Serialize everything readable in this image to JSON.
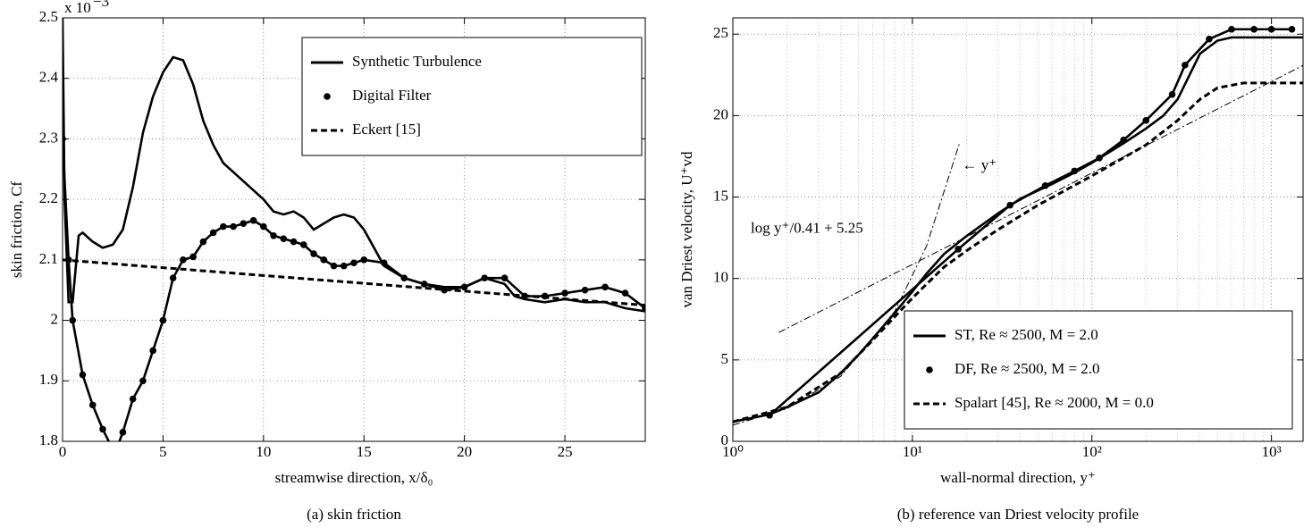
{
  "chart_data": [
    {
      "type": "line",
      "caption": "(a)  skin friction",
      "xlabel": "streamwise direction, x/δ₀",
      "ylabel": "skin friction, Cf",
      "multiplier": "x 10",
      "multiplier_exponent": "−3",
      "xlim": [
        0,
        29
      ],
      "ylim": [
        1.8,
        2.5
      ],
      "xticks": [
        0,
        5,
        10,
        15,
        20,
        25
      ],
      "yticks": [
        1.8,
        1.9,
        2,
        2.1,
        2.2,
        2.3,
        2.4,
        2.5
      ],
      "grid": true,
      "legend": "upper right",
      "series": [
        {
          "name": "Synthetic Turbulence",
          "color": "#000000",
          "linestyle": "solid",
          "marker": false,
          "x": [
            0,
            0.1,
            0.3,
            0.5,
            0.8,
            1,
            1.5,
            2,
            2.5,
            3,
            3.5,
            4,
            4.5,
            5,
            5.5,
            6,
            6.5,
            7,
            7.5,
            8,
            9,
            10,
            10.5,
            11,
            11.5,
            12,
            12.5,
            13,
            13.5,
            14,
            14.5,
            15,
            15.5,
            16,
            17,
            18,
            19,
            20,
            21,
            22,
            22.5,
            23,
            24,
            25,
            26,
            27,
            28,
            29
          ],
          "values": [
            2.5,
            2.2,
            2.03,
            2.03,
            2.14,
            2.145,
            2.13,
            2.12,
            2.125,
            2.15,
            2.22,
            2.31,
            2.37,
            2.41,
            2.435,
            2.43,
            2.39,
            2.33,
            2.29,
            2.26,
            2.23,
            2.2,
            2.18,
            2.175,
            2.18,
            2.17,
            2.15,
            2.16,
            2.17,
            2.175,
            2.17,
            2.15,
            2.12,
            2.09,
            2.07,
            2.06,
            2.055,
            2.055,
            2.07,
            2.06,
            2.04,
            2.035,
            2.03,
            2.035,
            2.03,
            2.03,
            2.02,
            2.015
          ]
        },
        {
          "name": "Digital Filter",
          "color": "#000000",
          "linestyle": "solid",
          "marker": true,
          "x": [
            0,
            0.3,
            0.5,
            1,
            1.5,
            2,
            2.6,
            3,
            3.5,
            4,
            4.5,
            5,
            5.5,
            6,
            6.5,
            7,
            7.5,
            8,
            8.5,
            9,
            9.5,
            10,
            10.5,
            11,
            11.5,
            12,
            12.5,
            13,
            13.5,
            14,
            14.5,
            15,
            16,
            17,
            18,
            19,
            20,
            21,
            22,
            23,
            24,
            25,
            26,
            27,
            28,
            29
          ],
          "values": [
            2.3,
            2.1,
            2.0,
            1.91,
            1.86,
            1.82,
            1.78,
            1.815,
            1.87,
            1.9,
            1.95,
            2.0,
            2.07,
            2.1,
            2.105,
            2.13,
            2.145,
            2.155,
            2.155,
            2.16,
            2.165,
            2.155,
            2.14,
            2.135,
            2.13,
            2.125,
            2.11,
            2.1,
            2.09,
            2.09,
            2.095,
            2.1,
            2.095,
            2.07,
            2.06,
            2.05,
            2.055,
            2.07,
            2.07,
            2.04,
            2.04,
            2.045,
            2.05,
            2.055,
            2.045,
            2.02
          ]
        },
        {
          "name": "Eckert [15]",
          "color": "#000000",
          "linestyle": "dashed",
          "marker": false,
          "x": [
            0,
            29
          ],
          "values": [
            2.1,
            2.025
          ]
        }
      ]
    },
    {
      "type": "line",
      "caption": "(b)  reference van Driest velocity profile",
      "xlabel": "wall-normal direction, y⁺",
      "ylabel": "van Driest velocity, U⁺vd",
      "xscale": "log",
      "xlim": [
        1,
        1500
      ],
      "ylim": [
        0,
        26
      ],
      "xticks": [
        {
          "value": 1,
          "label": "10⁰"
        },
        {
          "value": 10,
          "label": "10¹"
        },
        {
          "value": 100,
          "label": "10²"
        },
        {
          "value": 1000,
          "label": "10³"
        }
      ],
      "xminorticks": [
        2,
        3,
        4,
        5,
        6,
        7,
        8,
        9,
        20,
        30,
        40,
        50,
        60,
        70,
        80,
        90,
        200,
        300,
        400,
        500,
        600,
        700,
        800,
        900
      ],
      "yticks": [
        0,
        5,
        10,
        15,
        20,
        25
      ],
      "grid": true,
      "legend": "lower right",
      "series": [
        {
          "name": "ST, Re ≈ 2500, M = 2.0",
          "color": "#000000",
          "linestyle": "solid",
          "marker": false,
          "x": [
            1,
            1.6,
            2,
            3,
            4,
            5,
            6,
            8,
            10,
            12,
            15,
            20,
            30,
            40,
            60,
            80,
            100,
            150,
            200,
            250,
            300,
            350,
            400,
            500,
            600,
            1000,
            1500
          ],
          "values": [
            1.2,
            1.65,
            2.1,
            3.0,
            4.2,
            5.3,
            6.3,
            7.9,
            9.2,
            10.3,
            11.5,
            12.6,
            14.0,
            14.9,
            15.8,
            16.5,
            17.1,
            18.3,
            19.2,
            20.0,
            21.0,
            22.5,
            23.8,
            24.6,
            24.8,
            24.8,
            24.8
          ]
        },
        {
          "name": "DF, Re ≈ 2500, M = 2.0",
          "color": "#000000",
          "linestyle": "solid",
          "marker": true,
          "x": [
            1.6,
            18,
            35,
            55,
            80,
            110,
            150,
            200,
            280,
            330,
            450,
            600,
            800,
            1000,
            1300
          ],
          "values": [
            1.6,
            11.8,
            14.5,
            15.7,
            16.6,
            17.4,
            18.5,
            19.7,
            21.3,
            23.1,
            24.7,
            25.3,
            25.3,
            25.3,
            25.3
          ]
        },
        {
          "name": "Spalart [45], Re ≈ 2000, M = 0.0",
          "color": "#000000",
          "linestyle": "dashed",
          "marker": false,
          "x": [
            1,
            2,
            4,
            6,
            10,
            15,
            20,
            30,
            50,
            100,
            200,
            300,
            400,
            500,
            700,
            1500
          ],
          "values": [
            1.2,
            2.1,
            4.2,
            6.2,
            8.8,
            10.7,
            11.7,
            13.0,
            14.5,
            16.3,
            18.2,
            19.7,
            21.0,
            21.7,
            22.0,
            22.0
          ]
        }
      ],
      "reference_lines": [
        {
          "label": "← y⁺",
          "linestyle": "dashdot",
          "x": [
            1,
            2,
            4,
            8,
            12,
            18.3
          ],
          "values": [
            1,
            2,
            4,
            8,
            12,
            18.3
          ]
        },
        {
          "label": "log y⁺/0.41 + 5.25",
          "linestyle": "dashdot",
          "x": [
            1.8,
            1500
          ],
          "values": [
            6.68,
            23.08
          ]
        }
      ]
    }
  ]
}
